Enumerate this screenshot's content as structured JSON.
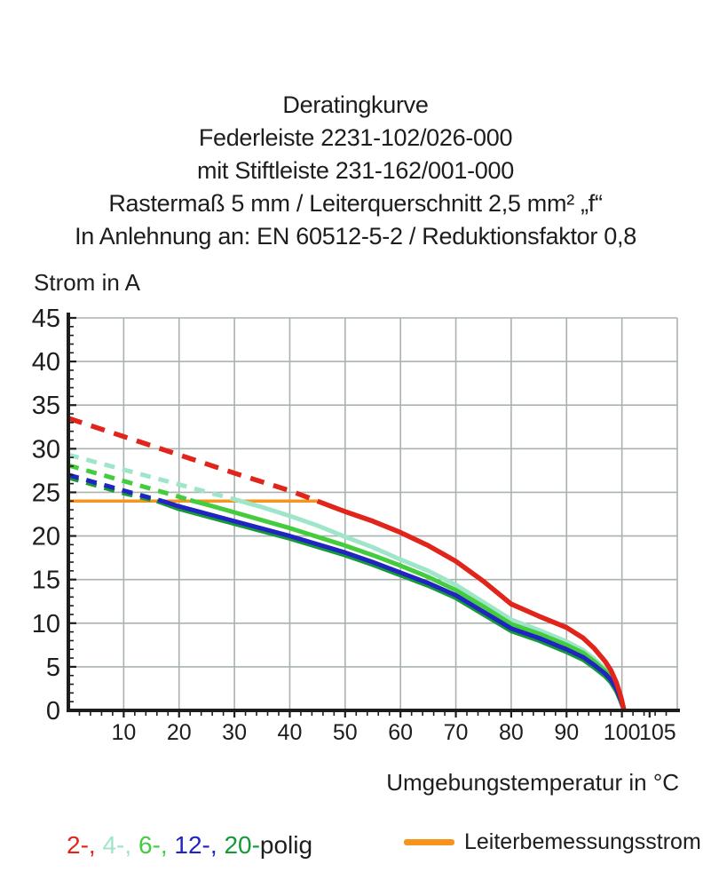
{
  "title_lines": [
    "Deratingkurve",
    "Federleiste 2231-102/026-000",
    "mit Stiftleiste 231-162/001-000",
    "Rastermaß 5 mm / Leiterquerschnitt 2,5 mm² „f“",
    "In Anlehnung an: EN 60512-5-2 / Reduktionsfaktor 0,8"
  ],
  "colors": {
    "axis": "#1d1d1b",
    "grid": "#a9b2af",
    "rated_orange": "#f7941d",
    "pole_2_red": "#e1251b",
    "pole_4_mint": "#9fe5c9",
    "pole_6_lightgreen": "#45cc3e",
    "pole_12_blue": "#2024c0",
    "pole_20_green": "#169a38"
  },
  "chart_data": {
    "type": "line",
    "title": "Deratingkurve",
    "xlabel": "Umgebungstemperatur in °C",
    "ylabel": "Strom in A",
    "xlim": [
      0,
      110
    ],
    "ylim": [
      0,
      45
    ],
    "grid": true,
    "legend_position": "bottom",
    "x_ticks": [
      10,
      20,
      30,
      40,
      50,
      60,
      70,
      80,
      90,
      100,
      105
    ],
    "y_ticks": [
      0,
      5,
      10,
      15,
      20,
      25,
      30,
      35,
      40,
      45
    ],
    "rated_line": {
      "label": "Leiterbemessungsstrom",
      "value": 24,
      "x_start": 0,
      "x_end": 45,
      "color": "#f7941d"
    },
    "dash_note": "curves dashed above rated current 24 A, solid below",
    "series": [
      {
        "name": "4-polig",
        "color": "#9fe5c9",
        "width": 5,
        "dash": "12 9",
        "dashed_until": 30,
        "points": [
          [
            0,
            29.3
          ],
          [
            10,
            27.6
          ],
          [
            20,
            25.9
          ],
          [
            30,
            24.2
          ],
          [
            35,
            23.3
          ],
          [
            40,
            22.3
          ],
          [
            45,
            21.2
          ],
          [
            50,
            19.9
          ],
          [
            55,
            18.7
          ],
          [
            60,
            17.3
          ],
          [
            65,
            16.0
          ],
          [
            70,
            14.4
          ],
          [
            75,
            12.4
          ],
          [
            80,
            10.4
          ],
          [
            85,
            9.2
          ],
          [
            90,
            7.9
          ],
          [
            93,
            6.9
          ],
          [
            95,
            5.9
          ],
          [
            97,
            4.7
          ],
          [
            98,
            4.0
          ],
          [
            99,
            2.8
          ],
          [
            99.8,
            1.4
          ],
          [
            100.4,
            0
          ]
        ]
      },
      {
        "name": "6-polig",
        "color": "#45cc3e",
        "width": 5,
        "dash": "12 9",
        "dashed_until": 22,
        "points": [
          [
            0,
            28.1
          ],
          [
            10,
            26.3
          ],
          [
            20,
            24.5
          ],
          [
            22,
            24.1
          ],
          [
            25,
            23.6
          ],
          [
            30,
            22.7
          ],
          [
            40,
            20.9
          ],
          [
            50,
            18.9
          ],
          [
            55,
            17.8
          ],
          [
            60,
            16.6
          ],
          [
            65,
            15.3
          ],
          [
            70,
            13.8
          ],
          [
            75,
            11.9
          ],
          [
            80,
            9.9
          ],
          [
            85,
            8.8
          ],
          [
            90,
            7.5
          ],
          [
            93,
            6.6
          ],
          [
            95,
            5.6
          ],
          [
            97,
            4.5
          ],
          [
            98,
            3.8
          ],
          [
            99,
            2.7
          ],
          [
            99.8,
            1.3
          ],
          [
            100.4,
            0
          ]
        ]
      },
      {
        "name": "20-polig",
        "color": "#169a38",
        "width": 5,
        "dash": "12 9",
        "dashed_until": 16,
        "points": [
          [
            0,
            26.7
          ],
          [
            10,
            24.9
          ],
          [
            16,
            24.0
          ],
          [
            20,
            23.1
          ],
          [
            30,
            21.4
          ],
          [
            40,
            19.7
          ],
          [
            50,
            17.8
          ],
          [
            55,
            16.7
          ],
          [
            60,
            15.5
          ],
          [
            65,
            14.3
          ],
          [
            70,
            12.9
          ],
          [
            75,
            11.0
          ],
          [
            80,
            9.1
          ],
          [
            85,
            8.0
          ],
          [
            90,
            6.7
          ],
          [
            93,
            5.8
          ],
          [
            95,
            4.9
          ],
          [
            97,
            3.9
          ],
          [
            98,
            3.2
          ],
          [
            99,
            2.2
          ],
          [
            99.8,
            1.0
          ],
          [
            100.4,
            0
          ]
        ]
      },
      {
        "name": "12-polig",
        "color": "#2024c0",
        "width": 5,
        "dash": "12 9",
        "dashed_until": 17,
        "points": [
          [
            0,
            27.0
          ],
          [
            10,
            25.2
          ],
          [
            17,
            24.0
          ],
          [
            20,
            23.4
          ],
          [
            30,
            21.7
          ],
          [
            40,
            20.0
          ],
          [
            50,
            18.1
          ],
          [
            55,
            17.0
          ],
          [
            60,
            15.8
          ],
          [
            65,
            14.6
          ],
          [
            70,
            13.2
          ],
          [
            75,
            11.3
          ],
          [
            80,
            9.4
          ],
          [
            85,
            8.3
          ],
          [
            90,
            7.0
          ],
          [
            93,
            6.1
          ],
          [
            95,
            5.2
          ],
          [
            97,
            4.2
          ],
          [
            98,
            3.5
          ],
          [
            99,
            2.5
          ],
          [
            99.8,
            1.2
          ],
          [
            100.4,
            0
          ]
        ]
      },
      {
        "name": "2-polig",
        "color": "#e1251b",
        "width": 5.5,
        "dash": "16 11",
        "dashed_until": 45,
        "points": [
          [
            0,
            33.5
          ],
          [
            10,
            31.4
          ],
          [
            20,
            29.3
          ],
          [
            30,
            27.2
          ],
          [
            40,
            25.2
          ],
          [
            45,
            24.0
          ],
          [
            50,
            22.8
          ],
          [
            55,
            21.7
          ],
          [
            60,
            20.4
          ],
          [
            65,
            18.9
          ],
          [
            70,
            17.1
          ],
          [
            75,
            14.8
          ],
          [
            80,
            12.2
          ],
          [
            85,
            10.8
          ],
          [
            90,
            9.5
          ],
          [
            93,
            8.3
          ],
          [
            95,
            7.1
          ],
          [
            97,
            5.6
          ],
          [
            98,
            4.6
          ],
          [
            99,
            3.2
          ],
          [
            99.8,
            1.6
          ],
          [
            100.4,
            0
          ]
        ]
      }
    ]
  },
  "legend": {
    "poles": [
      {
        "label": "2-",
        "color": "#e1251b"
      },
      {
        "label": "4-",
        "color": "#9fe5c9"
      },
      {
        "label": "6-",
        "color": "#45cc3e"
      },
      {
        "label": "12-",
        "color": "#2024c0"
      },
      {
        "label": "20-",
        "color": "#169a38"
      }
    ],
    "suffix": "polig",
    "suffix_color": "#1d1d1b",
    "rated_label": "Leiterbemessungsstrom"
  }
}
